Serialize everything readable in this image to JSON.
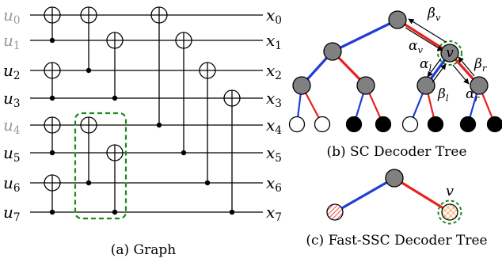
{
  "graph": {
    "inputs": [
      "u0",
      "u1",
      "u2",
      "u3",
      "u4",
      "u5",
      "u6",
      "u7"
    ],
    "frozen_inputs": [
      "u0",
      "u1",
      "u4"
    ],
    "outputs": [
      "x0",
      "x1",
      "x2",
      "x3",
      "x4",
      "x5",
      "x6",
      "x7"
    ],
    "caption": "(a) Graph"
  },
  "sc_tree": {
    "caption": "(b) SC Decoder Tree",
    "node_label": "v",
    "message_labels": {
      "alpha_v": "αv",
      "beta_v": "βv",
      "alpha_l": "αl",
      "beta_l": "βl",
      "alpha_r": "αr",
      "beta_r": "βr"
    },
    "leaves": [
      "frozen",
      "frozen",
      "info",
      "info",
      "frozen",
      "info",
      "info",
      "info"
    ]
  },
  "fast_tree": {
    "caption": "(c) Fast-SSC Decoder Tree",
    "node_label": "v"
  },
  "colors": {
    "blue": "#1f3fd6",
    "red": "#e8221e",
    "gray": "#808080",
    "green": "#1a8a1a",
    "frozen_text": "#9a9a9a"
  }
}
